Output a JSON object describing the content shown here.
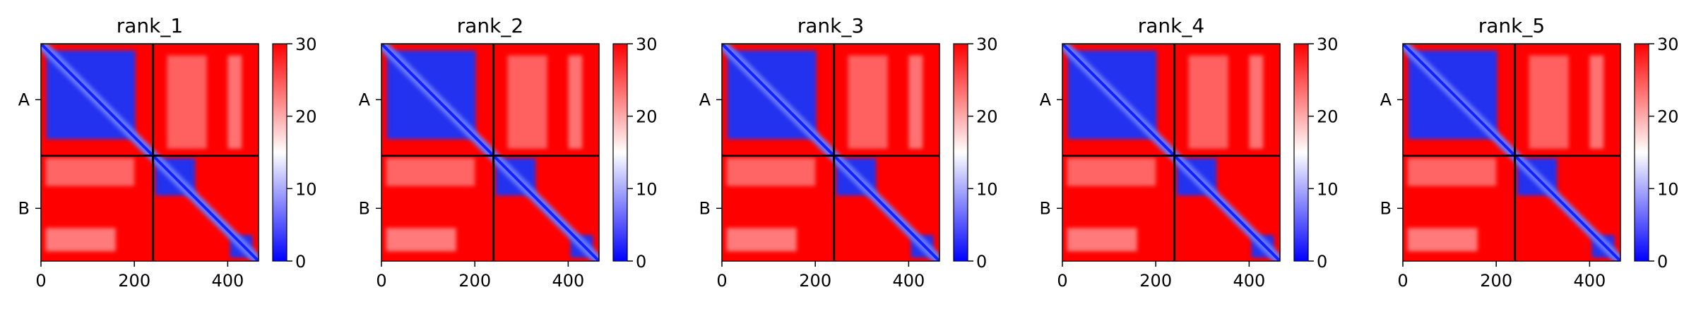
{
  "chart_data": [
    {
      "type": "heatmap",
      "title": "rank_1",
      "xticks": [
        0,
        200,
        400
      ],
      "xlim": [
        0,
        466
      ],
      "yticks": [
        "A",
        "B"
      ],
      "chain_boundary": 240,
      "colorbar": {
        "range": [
          0,
          30
        ],
        "ticks": [
          0,
          10,
          20,
          30
        ],
        "colormap": "bwr"
      }
    },
    {
      "type": "heatmap",
      "title": "rank_2",
      "xticks": [
        0,
        200,
        400
      ],
      "xlim": [
        0,
        466
      ],
      "yticks": [
        "A",
        "B"
      ],
      "chain_boundary": 240,
      "colorbar": {
        "range": [
          0,
          30
        ],
        "ticks": [
          0,
          10,
          20,
          30
        ],
        "colormap": "bwr"
      }
    },
    {
      "type": "heatmap",
      "title": "rank_3",
      "xticks": [
        0,
        200,
        400
      ],
      "xlim": [
        0,
        466
      ],
      "yticks": [
        "A",
        "B"
      ],
      "chain_boundary": 240,
      "colorbar": {
        "range": [
          0,
          30
        ],
        "ticks": [
          0,
          10,
          20,
          30
        ],
        "colormap": "bwr"
      }
    },
    {
      "type": "heatmap",
      "title": "rank_4",
      "xticks": [
        0,
        200,
        400
      ],
      "xlim": [
        0,
        466
      ],
      "yticks": [
        "A",
        "B"
      ],
      "chain_boundary": 240,
      "colorbar": {
        "range": [
          0,
          30
        ],
        "ticks": [
          0,
          10,
          20,
          30
        ],
        "colormap": "bwr"
      }
    },
    {
      "type": "heatmap",
      "title": "rank_5",
      "xticks": [
        0,
        200,
        400
      ],
      "xlim": [
        0,
        466
      ],
      "yticks": [
        "A",
        "B"
      ],
      "chain_boundary": 240,
      "colorbar": {
        "range": [
          0,
          30
        ],
        "ticks": [
          0,
          10,
          20,
          30
        ],
        "colormap": "bwr"
      }
    }
  ],
  "colors": {
    "high": "#ff0000",
    "mid": "#ffffff",
    "low": "#0000ff",
    "separator": "#000000"
  }
}
